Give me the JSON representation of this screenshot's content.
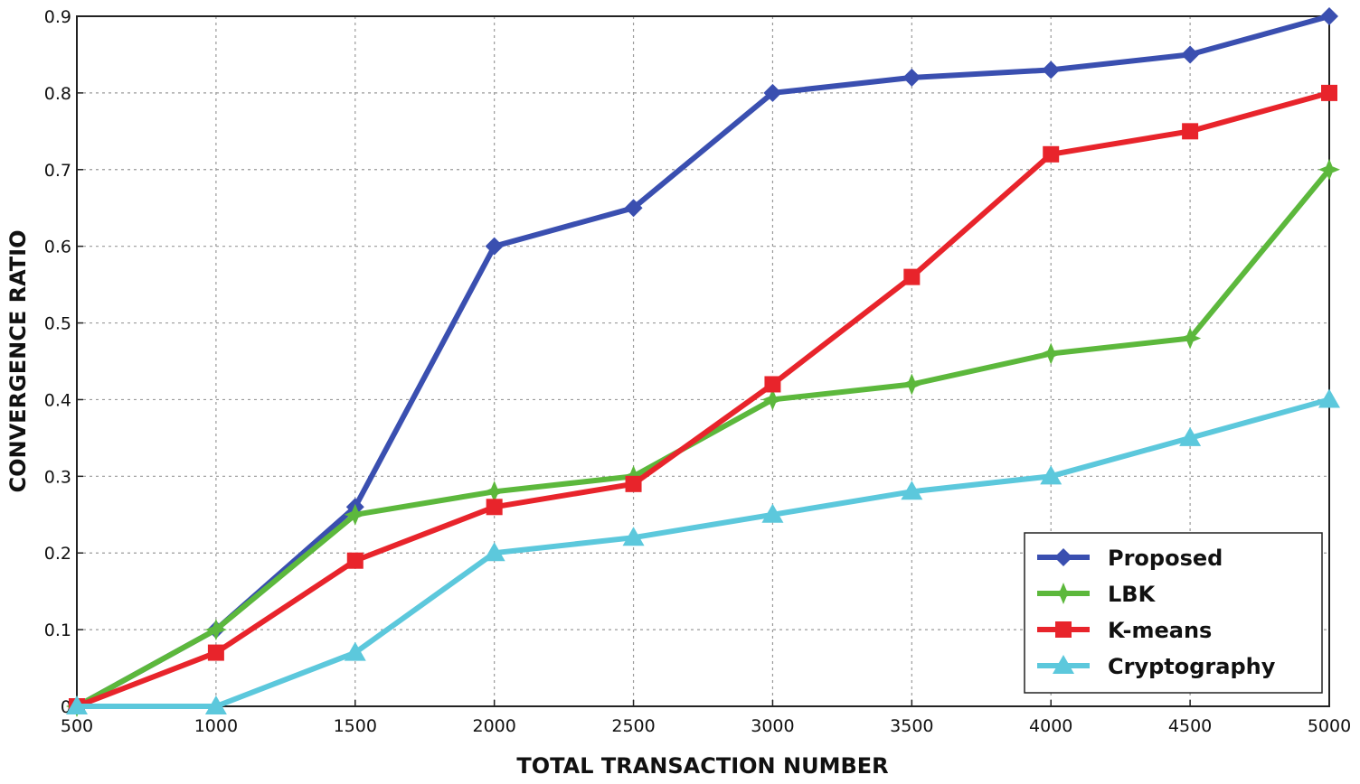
{
  "chart_data": {
    "type": "line",
    "title": "",
    "xlabel": "TOTAL TRANSACTION NUMBER",
    "ylabel": "CONVERGENCE RATIO",
    "x": [
      500,
      1000,
      1500,
      2000,
      2500,
      3000,
      3500,
      4000,
      4500,
      5000
    ],
    "xlim": [
      500,
      5000
    ],
    "ylim": [
      0,
      0.9
    ],
    "x_ticks": [
      "500",
      "1000",
      "1500",
      "2000",
      "2500",
      "3000",
      "3500",
      "4000",
      "4500",
      "5000"
    ],
    "y_ticks": [
      "0",
      "0.1",
      "0.2",
      "0.3",
      "0.4",
      "0.5",
      "0.6",
      "0.7",
      "0.8",
      "0.9"
    ],
    "grid": true,
    "legend_position": "bottom-right",
    "series": [
      {
        "name": "Proposed",
        "color": "#3a4fb0",
        "marker": "diamond",
        "values": [
          0,
          0.1,
          0.26,
          0.6,
          0.65,
          0.8,
          0.82,
          0.83,
          0.85,
          0.9
        ]
      },
      {
        "name": "LBK",
        "color": "#5cb83c",
        "marker": "star",
        "values": [
          0,
          0.1,
          0.25,
          0.28,
          0.3,
          0.4,
          0.42,
          0.46,
          0.48,
          0.7
        ]
      },
      {
        "name": "K-means",
        "color": "#e8242b",
        "marker": "square",
        "values": [
          0,
          0.07,
          0.19,
          0.26,
          0.29,
          0.42,
          0.56,
          0.72,
          0.75,
          0.8
        ]
      },
      {
        "name": "Cryptography",
        "color": "#5cc8dc",
        "marker": "triangle",
        "values": [
          0,
          0,
          0.07,
          0.2,
          0.22,
          0.25,
          0.28,
          0.3,
          0.35,
          0.4
        ]
      }
    ]
  }
}
